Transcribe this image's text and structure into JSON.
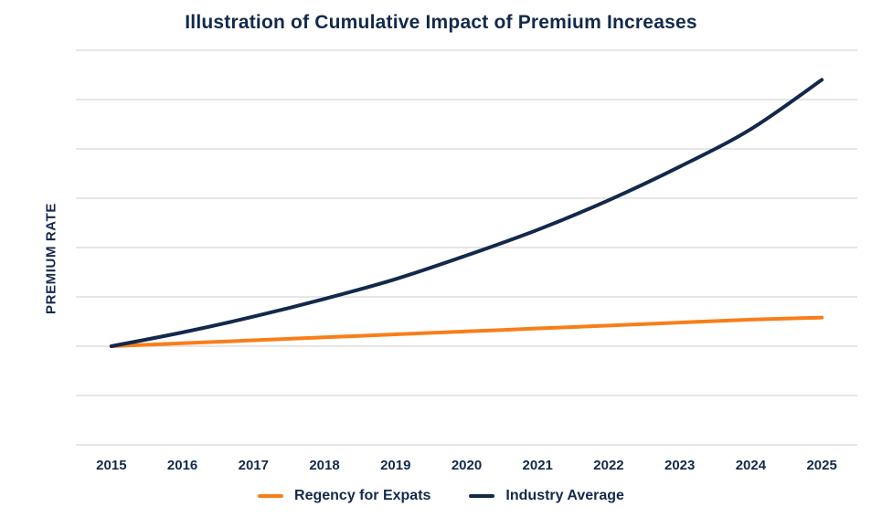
{
  "title": "Illustration of Cumulative Impact of Premium Increases",
  "chart_data": {
    "type": "line",
    "title": "Illustration of Cumulative Impact of Premium Increases",
    "x": [
      2015,
      2016,
      2017,
      2018,
      2019,
      2020,
      2021,
      2022,
      2023,
      2024,
      2025
    ],
    "series": [
      {
        "name": "Regency for Expats",
        "color": "#F87E19",
        "values": [
          100,
          101.5,
          103,
          104.5,
          106,
          107.5,
          109,
          110.5,
          112,
          113.5,
          114.5
        ]
      },
      {
        "name": "Industry Average",
        "color": "#13294C",
        "values": [
          100,
          107,
          115,
          124,
          134,
          146,
          159,
          174,
          191,
          210,
          235
        ]
      }
    ],
    "xlabel": "",
    "ylabel": "PREMIUM RATE",
    "ylim": [
      50,
      250
    ],
    "grid_step": 25,
    "y_tick_labels_visible": false,
    "grid": "horizontal",
    "legend_position": "bottom",
    "baseline_note": "values are an index, 2015 = 100 (y-axis has no numeric labels in source)"
  },
  "colors": {
    "text": "#13294C",
    "grid": "#D8D8D8",
    "background": "#FFFFFF"
  }
}
